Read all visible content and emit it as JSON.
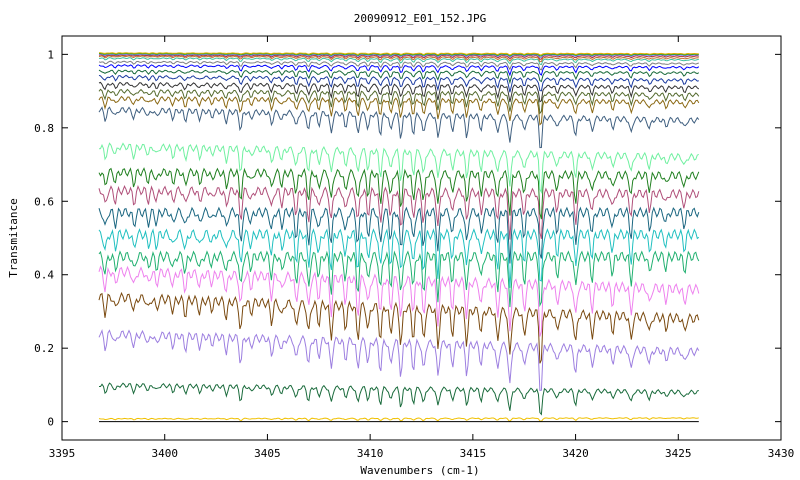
{
  "chart_data": {
    "type": "line",
    "title": "20090912_E01_152.JPG",
    "xlabel": "Wavenumbers (cm-1)",
    "ylabel": "Transmitance",
    "xlim": [
      3395,
      3430
    ],
    "ylim": [
      -0.05,
      1.05
    ],
    "xticks": [
      3395,
      3400,
      3405,
      3410,
      3415,
      3420,
      3425,
      3430
    ],
    "yticks": [
      0,
      0.2,
      0.4,
      0.6,
      0.8,
      1
    ],
    "x_range": [
      3396.8,
      3426.0
    ],
    "grid": false,
    "legend": "none",
    "absorption_lines": [
      {
        "x": 3397.1,
        "d": 0.3
      },
      {
        "x": 3397.6,
        "d": 0.22
      },
      {
        "x": 3398.5,
        "d": 0.25
      },
      {
        "x": 3399.2,
        "d": 0.2
      },
      {
        "x": 3399.6,
        "d": 0.2
      },
      {
        "x": 3400.4,
        "d": 0.22
      },
      {
        "x": 3401.0,
        "d": 0.28
      },
      {
        "x": 3401.7,
        "d": 0.22
      },
      {
        "x": 3402.3,
        "d": 0.15
      },
      {
        "x": 3403.0,
        "d": 0.3
      },
      {
        "x": 3403.7,
        "d": 0.55
      },
      {
        "x": 3404.2,
        "d": 0.2
      },
      {
        "x": 3405.2,
        "d": 0.35
      },
      {
        "x": 3405.7,
        "d": 0.25
      },
      {
        "x": 3406.4,
        "d": 0.45
      },
      {
        "x": 3407.0,
        "d": 0.55
      },
      {
        "x": 3407.5,
        "d": 0.35
      },
      {
        "x": 3408.1,
        "d": 0.6
      },
      {
        "x": 3408.8,
        "d": 0.4
      },
      {
        "x": 3409.4,
        "d": 0.6
      },
      {
        "x": 3409.9,
        "d": 0.45
      },
      {
        "x": 3410.5,
        "d": 0.6
      },
      {
        "x": 3411.0,
        "d": 0.5
      },
      {
        "x": 3411.5,
        "d": 0.7
      },
      {
        "x": 3412.1,
        "d": 0.55
      },
      {
        "x": 3412.6,
        "d": 0.6
      },
      {
        "x": 3413.3,
        "d": 0.7
      },
      {
        "x": 3414.0,
        "d": 0.45
      },
      {
        "x": 3414.7,
        "d": 0.6
      },
      {
        "x": 3415.4,
        "d": 0.4
      },
      {
        "x": 3416.2,
        "d": 0.55
      },
      {
        "x": 3416.8,
        "d": 0.85
      },
      {
        "x": 3417.5,
        "d": 0.45
      },
      {
        "x": 3418.3,
        "d": 1.0
      },
      {
        "x": 3419.1,
        "d": 0.35
      },
      {
        "x": 3420.0,
        "d": 0.55
      },
      {
        "x": 3420.8,
        "d": 0.4
      },
      {
        "x": 3421.8,
        "d": 0.3
      },
      {
        "x": 3422.7,
        "d": 0.45
      },
      {
        "x": 3423.6,
        "d": 0.3
      },
      {
        "x": 3424.4,
        "d": 0.2
      },
      {
        "x": 3425.3,
        "d": 0.25
      }
    ],
    "series": [
      {
        "color": "#f0c000",
        "left": 0.008,
        "right": 0.01,
        "depth": 0.01
      },
      {
        "color": "#000000",
        "left": 0.0,
        "right": 0.0,
        "depth": 0.0
      },
      {
        "color": "#1a6b3c",
        "left": 0.1,
        "right": 0.08,
        "depth": 0.07
      },
      {
        "color": "#9d7fe0",
        "left": 0.24,
        "right": 0.19,
        "depth": 0.13
      },
      {
        "color": "#7a4a10",
        "left": 0.34,
        "right": 0.28,
        "depth": 0.15
      },
      {
        "color": "#ee82ee",
        "left": 0.41,
        "right": 0.36,
        "depth": 0.16
      },
      {
        "color": "#20b070",
        "left": 0.45,
        "right": 0.45,
        "depth": 0.16
      },
      {
        "color": "#20c0c0",
        "left": 0.51,
        "right": 0.51,
        "depth": 0.16
      },
      {
        "color": "#1a6680",
        "left": 0.57,
        "right": 0.57,
        "depth": 0.15
      },
      {
        "color": "#b0507a",
        "left": 0.63,
        "right": 0.62,
        "depth": 0.14
      },
      {
        "color": "#208020",
        "left": 0.68,
        "right": 0.67,
        "depth": 0.13
      },
      {
        "color": "#70f0a0",
        "left": 0.75,
        "right": 0.72,
        "depth": 0.11
      },
      {
        "color": "#406080",
        "left": 0.85,
        "right": 0.82,
        "depth": 0.09
      },
      {
        "color": "#8b6914",
        "left": 0.88,
        "right": 0.87,
        "depth": 0.07
      },
      {
        "color": "#556b2f",
        "left": 0.9,
        "right": 0.89,
        "depth": 0.06
      },
      {
        "color": "#333333",
        "left": 0.92,
        "right": 0.91,
        "depth": 0.05
      },
      {
        "color": "#1a3aa0",
        "left": 0.94,
        "right": 0.93,
        "depth": 0.04
      },
      {
        "color": "#1a6b3c",
        "left": 0.955,
        "right": 0.95,
        "depth": 0.03
      },
      {
        "color": "#0000ff",
        "left": 0.97,
        "right": 0.965,
        "depth": 0.025
      },
      {
        "color": "#808080",
        "left": 0.98,
        "right": 0.975,
        "depth": 0.02
      },
      {
        "color": "#40c0a0",
        "left": 0.99,
        "right": 0.985,
        "depth": 0.015
      },
      {
        "color": "#c07030",
        "left": 0.995,
        "right": 0.99,
        "depth": 0.012
      },
      {
        "color": "#b03030",
        "left": 0.998,
        "right": 0.995,
        "depth": 0.01
      },
      {
        "color": "#8080ff",
        "left": 1.0,
        "right": 0.998,
        "depth": 0.008
      },
      {
        "color": "#20a020",
        "left": 1.002,
        "right": 1.0,
        "depth": 0.006
      },
      {
        "color": "#e0b000",
        "left": 1.004,
        "right": 1.002,
        "depth": 0.005
      }
    ]
  }
}
